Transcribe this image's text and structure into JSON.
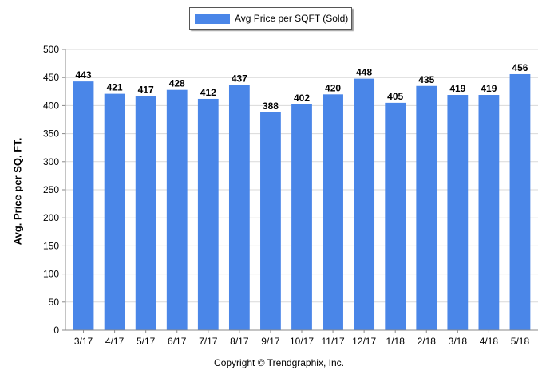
{
  "legend": {
    "label": "Avg Price per SQFT (Sold)",
    "color": "#4a86e8"
  },
  "footer": {
    "copyright": "Copyright © Trendgraphix, Inc."
  },
  "chart_data": {
    "type": "bar",
    "title": "",
    "xlabel": "",
    "ylabel": "Avg. Price per SQ. FT.",
    "categories": [
      "3/17",
      "4/17",
      "5/17",
      "6/17",
      "7/17",
      "8/17",
      "9/17",
      "10/17",
      "11/17",
      "12/17",
      "1/18",
      "2/18",
      "3/18",
      "4/18",
      "5/18"
    ],
    "series": [
      {
        "name": "Avg Price per SQFT (Sold)",
        "values": [
          443,
          421,
          417,
          428,
          412,
          437,
          388,
          402,
          420,
          448,
          405,
          435,
          419,
          419,
          456
        ],
        "color": "#4a86e8"
      }
    ],
    "ylim": [
      0,
      500
    ],
    "yticks": [
      0,
      50,
      100,
      150,
      200,
      250,
      300,
      350,
      400,
      450,
      500
    ],
    "grid": "horizontal",
    "legend_position": "top-center",
    "data_labels": true
  }
}
